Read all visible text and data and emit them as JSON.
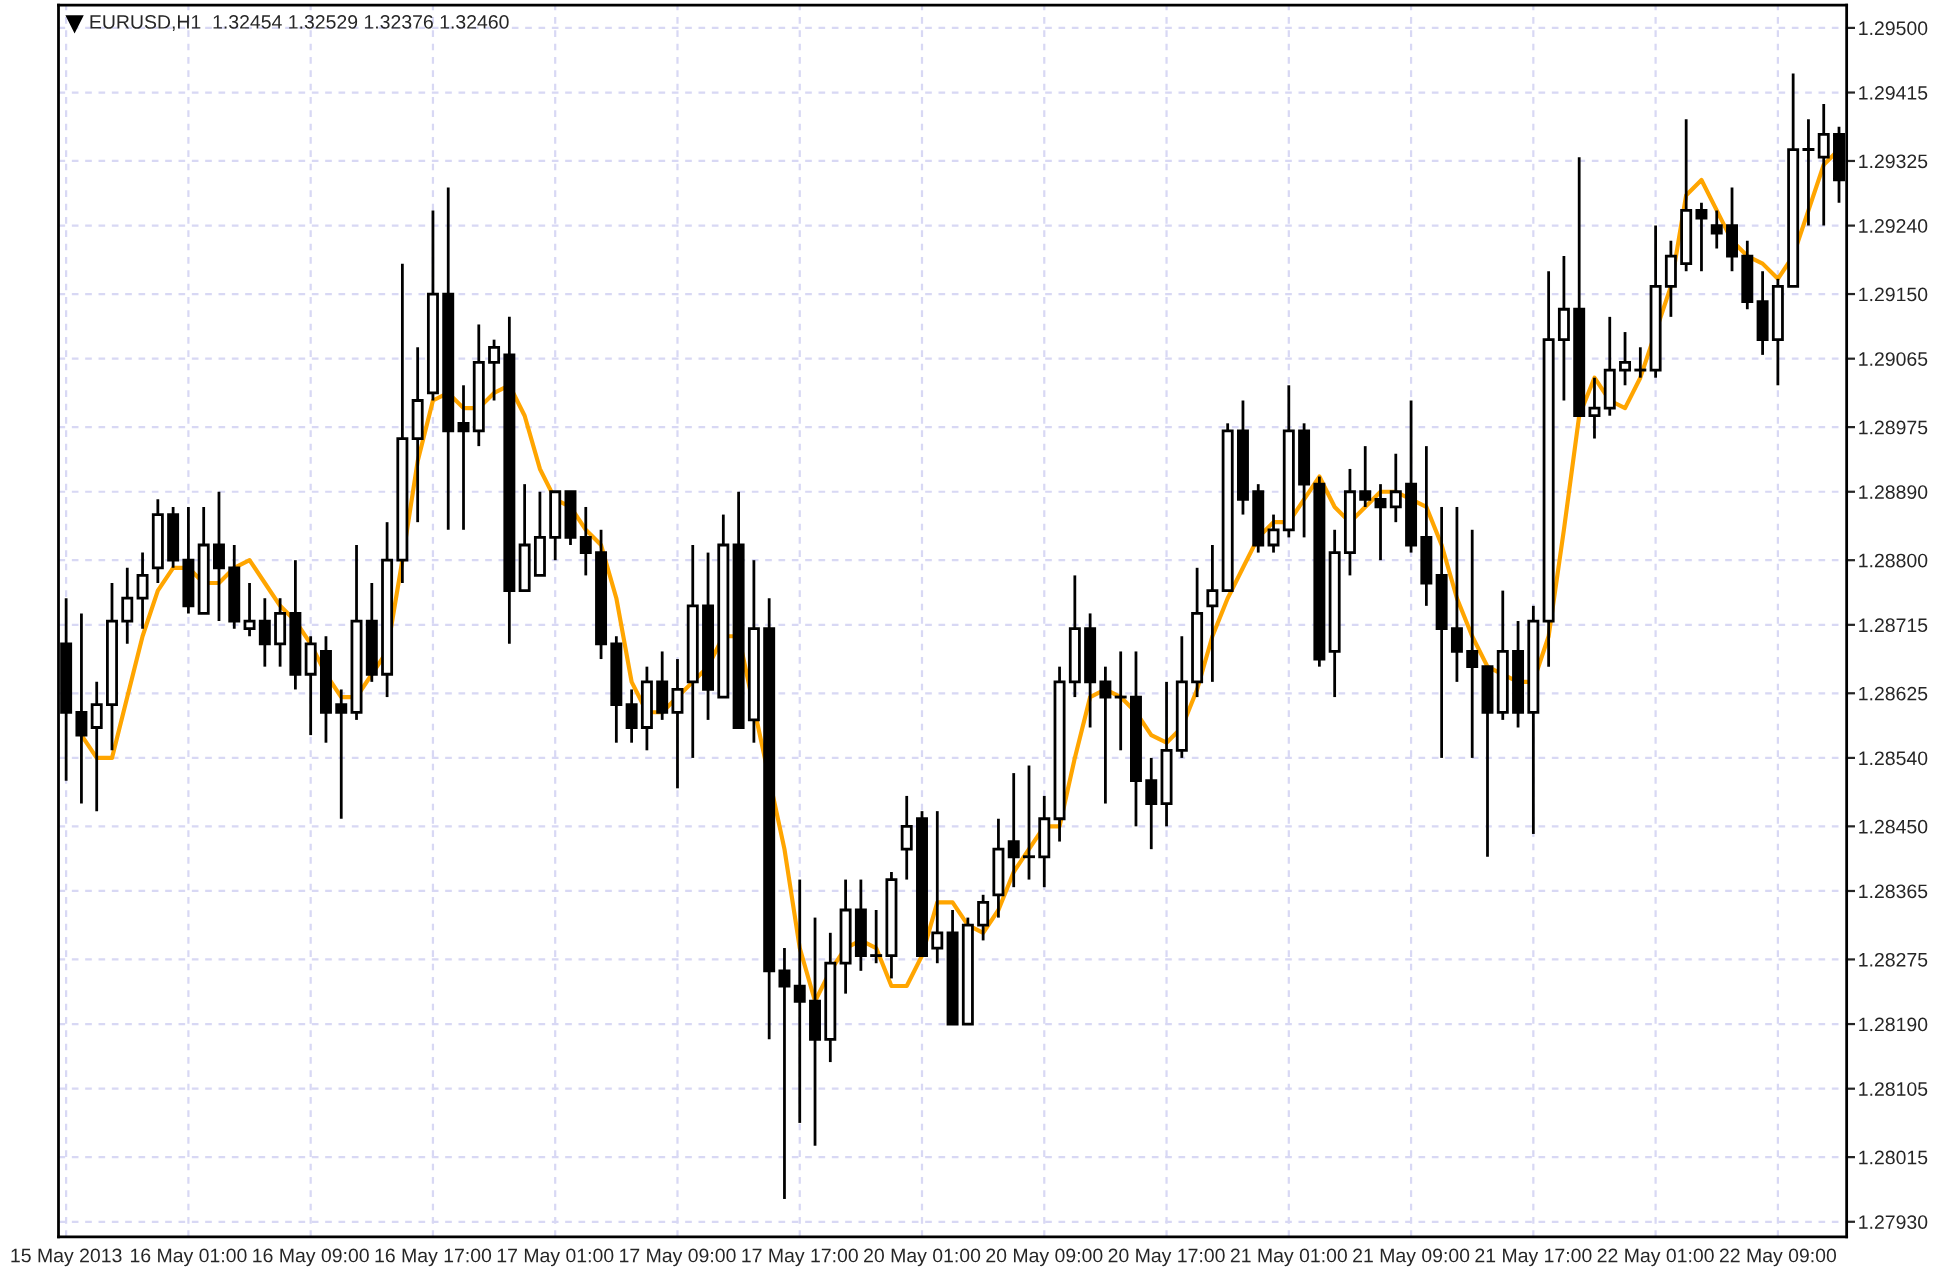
{
  "chart_data": {
    "type": "candlestick",
    "title": "EURUSD,H1  1.32454 1.32529 1.32376 1.32460",
    "categories": [
      "15 May 2013",
      null,
      null,
      null,
      null,
      null,
      null,
      null,
      "16 May 01:00",
      null,
      null,
      null,
      null,
      null,
      null,
      null,
      "16 May 09:00",
      null,
      null,
      null,
      null,
      null,
      null,
      null,
      "16 May 17:00",
      null,
      null,
      null,
      null,
      null,
      null,
      null,
      "17 May 01:00",
      null,
      null,
      null,
      null,
      null,
      null,
      null,
      "17 May 09:00",
      null,
      null,
      null,
      null,
      null,
      null,
      null,
      "17 May 17:00",
      null,
      null,
      null,
      null,
      null,
      null,
      null,
      "20 May 01:00",
      null,
      null,
      null,
      null,
      null,
      null,
      null,
      "20 May 09:00",
      null,
      null,
      null,
      null,
      null,
      null,
      null,
      "20 May 17:00",
      null,
      null,
      null,
      null,
      null,
      null,
      null,
      "21 May 01:00",
      null,
      null,
      null,
      null,
      null,
      null,
      null,
      "21 May 09:00",
      null,
      null,
      null,
      null,
      null,
      null,
      null,
      "21 May 17:00",
      null,
      null,
      null,
      null,
      null,
      null,
      null,
      "22 May 01:00",
      null,
      null,
      null,
      null,
      null,
      null,
      null,
      "22 May 09:00",
      null,
      null,
      null,
      null
    ],
    "ohlc": [
      [
        1.2869,
        1.2875,
        1.2851,
        1.286
      ],
      [
        1.286,
        1.2873,
        1.2848,
        1.2857
      ],
      [
        1.2858,
        1.2864,
        1.2847,
        1.2861
      ],
      [
        1.2861,
        1.2877,
        1.2855,
        1.2872
      ],
      [
        1.2872,
        1.2879,
        1.2869,
        1.2875
      ],
      [
        1.2875,
        1.2881,
        1.2871,
        1.2878
      ],
      [
        1.2879,
        1.2888,
        1.2877,
        1.2886
      ],
      [
        1.2886,
        1.2887,
        1.2879,
        1.288
      ],
      [
        1.288,
        1.2887,
        1.2873,
        1.2874
      ],
      [
        1.2873,
        1.2887,
        1.2873,
        1.2882
      ],
      [
        1.2882,
        1.2889,
        1.2872,
        1.2879
      ],
      [
        1.2879,
        1.2882,
        1.2871,
        1.2872
      ],
      [
        1.2871,
        1.2877,
        1.287,
        1.2872
      ],
      [
        1.2872,
        1.2875,
        1.2866,
        1.2869
      ],
      [
        1.2869,
        1.2875,
        1.2866,
        1.2873
      ],
      [
        1.2873,
        1.288,
        1.2863,
        1.2865
      ],
      [
        1.2865,
        1.287,
        1.2857,
        1.2869
      ],
      [
        1.2868,
        1.287,
        1.2856,
        1.286
      ],
      [
        1.2861,
        1.2863,
        1.2846,
        1.286
      ],
      [
        1.286,
        1.2882,
        1.2859,
        1.2872
      ],
      [
        1.2872,
        1.2877,
        1.2864,
        1.2865
      ],
      [
        1.2865,
        1.2885,
        1.2862,
        1.288
      ],
      [
        1.288,
        1.2919,
        1.2877,
        1.2896
      ],
      [
        1.2896,
        1.2908,
        1.2885,
        1.2901
      ],
      [
        1.2902,
        1.2926,
        1.2901,
        1.2915
      ],
      [
        1.2915,
        1.2929,
        1.2884,
        1.2897
      ],
      [
        1.2898,
        1.2903,
        1.2884,
        1.2897
      ],
      [
        1.2897,
        1.2911,
        1.2895,
        1.2906
      ],
      [
        1.2906,
        1.2909,
        1.2901,
        1.2908
      ],
      [
        1.2907,
        1.2912,
        1.2869,
        1.2876
      ],
      [
        1.2876,
        1.289,
        1.2876,
        1.2882
      ],
      [
        1.2878,
        1.2889,
        1.2878,
        1.2883
      ],
      [
        1.2883,
        1.2889,
        1.288,
        1.2889
      ],
      [
        1.2889,
        1.2889,
        1.2882,
        1.2883
      ],
      [
        1.2883,
        1.2887,
        1.2878,
        1.2881
      ],
      [
        1.2881,
        1.2884,
        1.2867,
        1.2869
      ],
      [
        1.2869,
        1.287,
        1.2856,
        1.2861
      ],
      [
        1.2861,
        1.2863,
        1.2856,
        1.2858
      ],
      [
        1.2858,
        1.2866,
        1.2855,
        1.2864
      ],
      [
        1.2864,
        1.2868,
        1.2859,
        1.286
      ],
      [
        1.286,
        1.2867,
        1.285,
        1.2863
      ],
      [
        1.2864,
        1.2882,
        1.2854,
        1.2874
      ],
      [
        1.2874,
        1.2881,
        1.2859,
        1.2863
      ],
      [
        1.2862,
        1.2886,
        1.2862,
        1.2882
      ],
      [
        1.2882,
        1.2889,
        1.2858,
        1.2858
      ],
      [
        1.2859,
        1.288,
        1.2856,
        1.2871
      ],
      [
        1.2871,
        1.2875,
        1.2817,
        1.2826
      ],
      [
        1.2826,
        1.2829,
        1.2796,
        1.2824
      ],
      [
        1.2824,
        1.2838,
        1.2806,
        1.2822
      ],
      [
        1.2822,
        1.2833,
        1.2803,
        1.2817
      ],
      [
        1.2817,
        1.2831,
        1.2814,
        1.2827
      ],
      [
        1.2827,
        1.2838,
        1.2823,
        1.2834
      ],
      [
        1.2834,
        1.2838,
        1.2826,
        1.2828
      ],
      [
        1.2828,
        1.2834,
        1.2827,
        1.2828
      ],
      [
        1.2828,
        1.2839,
        1.2825,
        1.2838
      ],
      [
        1.2842,
        1.2849,
        1.2838,
        1.2845
      ],
      [
        1.2846,
        1.2847,
        1.2828,
        1.2828
      ],
      [
        1.2829,
        1.2847,
        1.2827,
        1.2831
      ],
      [
        1.2831,
        1.2834,
        1.2819,
        1.2819
      ],
      [
        1.2819,
        1.2833,
        1.2819,
        1.2832
      ],
      [
        1.2832,
        1.2836,
        1.283,
        1.2835
      ],
      [
        1.2836,
        1.2846,
        1.2833,
        1.2842
      ],
      [
        1.2843,
        1.2852,
        1.2837,
        1.2841
      ],
      [
        1.2841,
        1.2853,
        1.2838,
        1.2841
      ],
      [
        1.2841,
        1.2849,
        1.2837,
        1.2846
      ],
      [
        1.2846,
        1.2866,
        1.2843,
        1.2864
      ],
      [
        1.2864,
        1.2878,
        1.2862,
        1.2871
      ],
      [
        1.2871,
        1.2873,
        1.2858,
        1.2864
      ],
      [
        1.2864,
        1.2866,
        1.2848,
        1.2862
      ],
      [
        1.2862,
        1.2868,
        1.2855,
        1.2862
      ],
      [
        1.2862,
        1.2868,
        1.2845,
        1.2851
      ],
      [
        1.2851,
        1.2854,
        1.2842,
        1.2848
      ],
      [
        1.2848,
        1.2864,
        1.2845,
        1.2855
      ],
      [
        1.2855,
        1.287,
        1.2854,
        1.2864
      ],
      [
        1.2864,
        1.2879,
        1.2862,
        1.2873
      ],
      [
        1.2874,
        1.2882,
        1.2864,
        1.2876
      ],
      [
        1.2876,
        1.2898,
        1.2876,
        1.2897
      ],
      [
        1.2897,
        1.2901,
        1.2886,
        1.2888
      ],
      [
        1.2889,
        1.289,
        1.2881,
        1.2882
      ],
      [
        1.2882,
        1.2886,
        1.2881,
        1.2884
      ],
      [
        1.2884,
        1.2903,
        1.2883,
        1.2897
      ],
      [
        1.2897,
        1.2898,
        1.2883,
        1.289
      ],
      [
        1.289,
        1.2891,
        1.2866,
        1.2867
      ],
      [
        1.2868,
        1.2884,
        1.2862,
        1.2881
      ],
      [
        1.2881,
        1.2892,
        1.2878,
        1.2889
      ],
      [
        1.2889,
        1.2895,
        1.2887,
        1.2888
      ],
      [
        1.2888,
        1.289,
        1.288,
        1.2887
      ],
      [
        1.2887,
        1.2894,
        1.2885,
        1.2889
      ],
      [
        1.289,
        1.2901,
        1.2881,
        1.2882
      ],
      [
        1.2883,
        1.2895,
        1.2874,
        1.2877
      ],
      [
        1.2878,
        1.2887,
        1.2854,
        1.2871
      ],
      [
        1.2871,
        1.2887,
        1.2864,
        1.2868
      ],
      [
        1.2868,
        1.2884,
        1.2854,
        1.2866
      ],
      [
        1.2866,
        1.2866,
        1.2841,
        1.286
      ],
      [
        1.286,
        1.2876,
        1.2859,
        1.2868
      ],
      [
        1.2868,
        1.2872,
        1.2858,
        1.286
      ],
      [
        1.286,
        1.2874,
        1.2844,
        1.2872
      ],
      [
        1.2872,
        1.2918,
        1.2866,
        1.2909
      ],
      [
        1.2909,
        1.292,
        1.2901,
        1.2913
      ],
      [
        1.2913,
        1.2933,
        1.2899,
        1.2899
      ],
      [
        1.2899,
        1.2904,
        1.2896,
        1.29
      ],
      [
        1.29,
        1.2912,
        1.2899,
        1.2905
      ],
      [
        1.2905,
        1.291,
        1.2903,
        1.2906
      ],
      [
        1.2905,
        1.2908,
        1.2904,
        1.2905
      ],
      [
        1.2905,
        1.2924,
        1.2904,
        1.2916
      ],
      [
        1.2916,
        1.2922,
        1.2912,
        1.292
      ],
      [
        1.2919,
        1.2938,
        1.2918,
        1.2926
      ],
      [
        1.2926,
        1.2927,
        1.2918,
        1.2925
      ],
      [
        1.2924,
        1.2926,
        1.2921,
        1.2923
      ],
      [
        1.2924,
        1.2929,
        1.2918,
        1.292
      ],
      [
        1.292,
        1.2922,
        1.2913,
        1.2914
      ],
      [
        1.2914,
        1.2918,
        1.2907,
        1.2909
      ],
      [
        1.2909,
        1.2917,
        1.2903,
        1.2916
      ],
      [
        1.2916,
        1.2944,
        1.2916,
        1.2934
      ],
      [
        1.2934,
        1.2938,
        1.2924,
        1.2934
      ],
      [
        1.2933,
        1.294,
        1.2924,
        1.2936
      ],
      [
        1.2936,
        1.2937,
        1.2927,
        1.293
      ]
    ],
    "color": "#000000",
    "series": [
      {
        "type": "line",
        "color": "#ffa500",
        "values": [
          null,
          1.2857,
          1.2854,
          1.2854,
          1.2862,
          1.287,
          1.2876,
          1.2879,
          1.2879,
          1.2877,
          1.2877,
          1.2879,
          1.288,
          1.2877,
          1.2874,
          1.2872,
          1.2869,
          1.2865,
          1.2862,
          1.2862,
          1.2865,
          1.2868,
          1.288,
          1.2893,
          1.2901,
          1.2902,
          1.29,
          1.29,
          1.2902,
          1.2903,
          1.2899,
          1.2892,
          1.2888,
          1.2887,
          1.2884,
          1.2882,
          1.2875,
          1.2864,
          1.286,
          1.286,
          1.2862,
          1.2864,
          1.2866,
          1.287,
          1.287,
          null,
          null,
          1.2842,
          1.2829,
          1.2822,
          1.2826,
          1.2829,
          1.283,
          1.2829,
          1.2824,
          1.2824,
          1.2828,
          1.2835,
          1.2835,
          1.2832,
          1.2831,
          1.2834,
          1.2839,
          1.2842,
          1.2845,
          1.2845,
          1.2854,
          1.2862,
          1.2863,
          1.2862,
          1.286,
          1.2857,
          1.2856,
          1.2858,
          1.2863,
          1.287,
          1.2875,
          1.2879,
          1.2883,
          1.2885,
          1.2885,
          1.2888,
          1.2891,
          1.2887,
          1.2885,
          1.2887,
          1.2889,
          1.2889,
          1.2888,
          1.2887,
          1.2882,
          1.2875,
          1.287,
          1.2866,
          1.2865,
          1.2864,
          1.2864,
          1.287,
          1.2884,
          1.2899,
          1.2904,
          1.2901,
          1.29,
          1.2904,
          null,
          1.2916,
          1.2928,
          1.293,
          1.2926,
          1.2922,
          1.292,
          1.2919,
          1.2917,
          1.292,
          1.2926,
          1.2932,
          1.2934
        ]
      }
    ],
    "ylim": [
      1.2791,
      1.2953
    ],
    "yticks": [
      {
        "value": 1.295,
        "label": "1.29500"
      },
      {
        "value": 1.29415,
        "label": "1.29415"
      },
      {
        "value": 1.29325,
        "label": "1.29325"
      },
      {
        "value": 1.2924,
        "label": "1.29240"
      },
      {
        "value": 1.2915,
        "label": "1.29150"
      },
      {
        "value": 1.29065,
        "label": "1.29065"
      },
      {
        "value": 1.28975,
        "label": "1.28975"
      },
      {
        "value": 1.2889,
        "label": "1.28890"
      },
      {
        "value": 1.288,
        "label": "1.28800"
      },
      {
        "value": 1.28715,
        "label": "1.28715"
      },
      {
        "value": 1.28625,
        "label": "1.28625"
      },
      {
        "value": 1.2854,
        "label": "1.28540"
      },
      {
        "value": 1.2845,
        "label": "1.28450"
      },
      {
        "value": 1.28365,
        "label": "1.28365"
      },
      {
        "value": 1.28275,
        "label": "1.28275"
      },
      {
        "value": 1.2819,
        "label": "1.28190"
      },
      {
        "value": 1.28105,
        "label": "1.28105"
      },
      {
        "value": 1.28015,
        "label": "1.28015"
      },
      {
        "value": 1.2793,
        "label": "1.27930"
      }
    ],
    "grid": true
  }
}
